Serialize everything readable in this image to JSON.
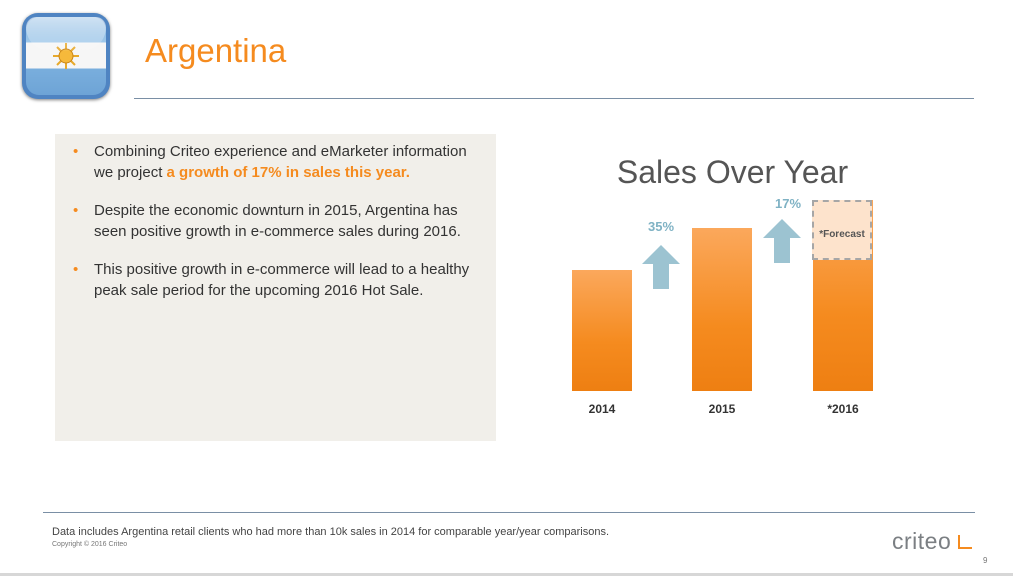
{
  "slide": {
    "title": "Argentina",
    "bullets": [
      {
        "text": "Combining Criteo experience and eMarketer information we project ",
        "highlight": "a growth of 17% in sales this year."
      },
      {
        "text": "Despite the economic downturn in 2015, Argentina has seen positive growth in e-commerce sales during 2016.",
        "highlight": ""
      },
      {
        "text": "This positive growth in e-commerce will lead to a healthy peak sale period for the upcoming 2016 Hot Sale.",
        "highlight": ""
      }
    ],
    "footnote": "Data includes Argentina retail clients who had more than 10k sales in 2014 for comparable year/year comparisons.",
    "copyright": "Copyright © 2016 Criteo",
    "logo": "criteo",
    "page_number": "9"
  },
  "chart_data": {
    "type": "bar",
    "title": "Sales Over Year",
    "categories": [
      "2014",
      "2015",
      "*2016"
    ],
    "values": [
      100,
      135,
      158
    ],
    "growth_labels": [
      "35%",
      "17%"
    ],
    "forecast_label": "*Forecast",
    "ylim": [
      0,
      170
    ],
    "colors": {
      "bar": "#f58b1f",
      "forecast": "#fde3cc",
      "arrow": "#9cc3d1"
    }
  },
  "icons": [
    "argentina-flag-icon",
    "up-arrow-icon",
    "criteo-logo"
  ]
}
